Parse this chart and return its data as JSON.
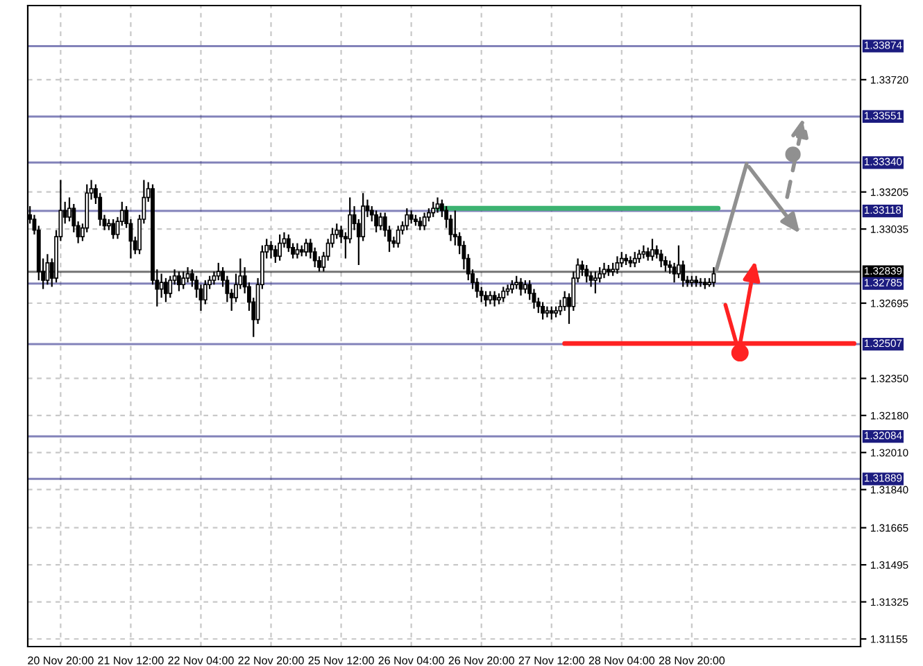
{
  "chart_data": {
    "type": "candlestick",
    "color": "#000000",
    "categories": [
      null,
      null,
      null,
      null,
      null,
      null,
      null,
      "20 Nov 20:00",
      null,
      null,
      null,
      null,
      null,
      null,
      null,
      null,
      null,
      null,
      null,
      null,
      null,
      null,
      null,
      "21 Nov 12:00",
      null,
      null,
      null,
      null,
      null,
      null,
      null,
      null,
      null,
      null,
      null,
      null,
      null,
      null,
      null,
      "22 Nov 04:00",
      null,
      null,
      null,
      null,
      null,
      null,
      null,
      null,
      null,
      null,
      null,
      null,
      null,
      null,
      null,
      "22 Nov 20:00",
      null,
      null,
      null,
      null,
      null,
      null,
      null,
      null,
      null,
      null,
      null,
      null,
      null,
      null,
      null,
      "25 Nov 12:00",
      null,
      null,
      null,
      null,
      null,
      null,
      null,
      null,
      null,
      null,
      null,
      null,
      null,
      null,
      null,
      "26 Nov 04:00",
      null,
      null,
      null,
      null,
      null,
      null,
      null,
      null,
      null,
      null,
      null,
      null,
      null,
      null,
      null,
      "26 Nov 20:00",
      null,
      null,
      null,
      null,
      null,
      null,
      null,
      null,
      null,
      null,
      null,
      null,
      null,
      null,
      null,
      "27 Nov 12:00",
      null,
      null,
      null,
      null,
      null,
      null,
      null,
      null,
      null,
      null,
      null,
      null,
      null,
      null,
      null,
      "28 Nov 04:00",
      null,
      null,
      null,
      null,
      null,
      null,
      null,
      null,
      null,
      null,
      null,
      null,
      null,
      null,
      null,
      "28 Nov 20:00",
      null,
      null,
      null,
      null,
      null,
      null,
      null,
      null,
      null,
      null,
      null,
      null,
      null,
      null,
      null,
      null,
      null,
      null,
      null,
      null,
      null,
      null,
      null,
      null,
      null,
      null,
      null,
      null,
      null,
      null,
      null,
      null,
      null,
      null,
      null,
      null,
      null,
      null
    ],
    "ohlc": [
      [
        1.331,
        1.3314,
        1.3306,
        1.3308
      ],
      [
        1.3308,
        1.331,
        1.3301,
        1.3303
      ],
      [
        1.3303,
        1.3305,
        1.328,
        1.3284
      ],
      [
        1.3284,
        1.329,
        1.3276,
        1.328
      ],
      [
        1.328,
        1.3292,
        1.3278,
        1.3288
      ],
      [
        1.3288,
        1.329,
        1.3277,
        1.3281
      ],
      [
        1.3281,
        1.3303,
        1.3279,
        1.33
      ],
      [
        1.33,
        1.3326,
        1.3298,
        1.3312
      ],
      [
        1.3312,
        1.3316,
        1.3306,
        1.3309
      ],
      [
        1.3309,
        1.3318,
        1.3307,
        1.3313
      ],
      [
        1.3313,
        1.3315,
        1.3302,
        1.3305
      ],
      [
        1.3305,
        1.3307,
        1.3297,
        1.33
      ],
      [
        1.33,
        1.3306,
        1.3298,
        1.3304
      ],
      [
        1.3304,
        1.3324,
        1.3302,
        1.332
      ],
      [
        1.332,
        1.3326,
        1.3317,
        1.3322
      ],
      [
        1.3322,
        1.3324,
        1.3315,
        1.3318
      ],
      [
        1.3318,
        1.332,
        1.3305,
        1.3308
      ],
      [
        1.3308,
        1.331,
        1.3303,
        1.3305
      ],
      [
        1.3305,
        1.3308,
        1.3303,
        1.3306
      ],
      [
        1.3306,
        1.3308,
        1.3299,
        1.3301
      ],
      [
        1.3301,
        1.3309,
        1.3299,
        1.3307
      ],
      [
        1.3307,
        1.3316,
        1.3305,
        1.3312
      ],
      [
        1.3312,
        1.3314,
        1.3304,
        1.3306
      ],
      [
        1.3306,
        1.3308,
        1.329,
        1.3298
      ],
      [
        1.3298,
        1.33,
        1.3292,
        1.3294
      ],
      [
        1.3294,
        1.331,
        1.3292,
        1.3308
      ],
      [
        1.3308,
        1.3326,
        1.3306,
        1.3318
      ],
      [
        1.3318,
        1.3325,
        1.3316,
        1.3322
      ],
      [
        1.3322,
        1.3324,
        1.3278,
        1.328
      ],
      [
        1.328,
        1.3285,
        1.3268,
        1.3276
      ],
      [
        1.3276,
        1.3283,
        1.3272,
        1.3279
      ],
      [
        1.3279,
        1.3281,
        1.327,
        1.3274
      ],
      [
        1.3274,
        1.3282,
        1.3272,
        1.328
      ],
      [
        1.328,
        1.3285,
        1.3278,
        1.3282
      ],
      [
        1.3282,
        1.3284,
        1.3275,
        1.3278
      ],
      [
        1.3278,
        1.3284,
        1.3276,
        1.3281
      ],
      [
        1.3281,
        1.3286,
        1.3279,
        1.3283
      ],
      [
        1.3283,
        1.3285,
        1.3277,
        1.328
      ],
      [
        1.328,
        1.3282,
        1.3272,
        1.3276
      ],
      [
        1.3276,
        1.3278,
        1.3266,
        1.3271
      ],
      [
        1.3271,
        1.328,
        1.3269,
        1.3278
      ],
      [
        1.3278,
        1.3282,
        1.3276,
        1.328
      ],
      [
        1.328,
        1.3284,
        1.3278,
        1.3282
      ],
      [
        1.3282,
        1.3288,
        1.328,
        1.3284
      ],
      [
        1.3284,
        1.3286,
        1.3277,
        1.328
      ],
      [
        1.328,
        1.3282,
        1.327,
        1.3274
      ],
      [
        1.3274,
        1.3276,
        1.3266,
        1.3272
      ],
      [
        1.3272,
        1.3283,
        1.327,
        1.3278
      ],
      [
        1.3278,
        1.329,
        1.3276,
        1.3282
      ],
      [
        1.3282,
        1.3286,
        1.3274,
        1.3277
      ],
      [
        1.3277,
        1.3279,
        1.3266,
        1.327
      ],
      [
        1.327,
        1.3272,
        1.3254,
        1.3262
      ],
      [
        1.3262,
        1.3281,
        1.326,
        1.3278
      ],
      [
        1.3278,
        1.3296,
        1.3276,
        1.3293
      ],
      [
        1.3293,
        1.3299,
        1.329,
        1.3296
      ],
      [
        1.3296,
        1.3298,
        1.329,
        1.3294
      ],
      [
        1.3294,
        1.3296,
        1.3288,
        1.3291
      ],
      [
        1.3291,
        1.3301,
        1.3289,
        1.3297
      ],
      [
        1.3297,
        1.3302,
        1.3295,
        1.3299
      ],
      [
        1.3299,
        1.3301,
        1.3293,
        1.3295
      ],
      [
        1.3295,
        1.3297,
        1.329,
        1.3292
      ],
      [
        1.3292,
        1.3297,
        1.329,
        1.3294
      ],
      [
        1.3294,
        1.3296,
        1.3291,
        1.3293
      ],
      [
        1.3293,
        1.3299,
        1.3291,
        1.3297
      ],
      [
        1.3297,
        1.3299,
        1.329,
        1.3293
      ],
      [
        1.3293,
        1.3295,
        1.3286,
        1.3289
      ],
      [
        1.3289,
        1.3291,
        1.3284,
        1.3286
      ],
      [
        1.3286,
        1.3293,
        1.3284,
        1.3291
      ],
      [
        1.3291,
        1.3299,
        1.3289,
        1.3297
      ],
      [
        1.3297,
        1.3304,
        1.3295,
        1.3301
      ],
      [
        1.3301,
        1.3306,
        1.3299,
        1.3303
      ],
      [
        1.3303,
        1.3305,
        1.3297,
        1.33
      ],
      [
        1.33,
        1.3302,
        1.329,
        1.3299
      ],
      [
        1.3299,
        1.3318,
        1.3297,
        1.331
      ],
      [
        1.331,
        1.3314,
        1.3303,
        1.3306
      ],
      [
        1.3306,
        1.3308,
        1.3287,
        1.33
      ],
      [
        1.33,
        1.332,
        1.3298,
        1.3314
      ],
      [
        1.3314,
        1.3317,
        1.3309,
        1.3312
      ],
      [
        1.3312,
        1.3314,
        1.3307,
        1.331
      ],
      [
        1.331,
        1.3312,
        1.3302,
        1.3305
      ],
      [
        1.3305,
        1.3311,
        1.3303,
        1.3309
      ],
      [
        1.3309,
        1.3311,
        1.33,
        1.3303
      ],
      [
        1.3303,
        1.3305,
        1.3293,
        1.3298
      ],
      [
        1.3298,
        1.33,
        1.3295,
        1.3297
      ],
      [
        1.3297,
        1.3305,
        1.3295,
        1.3303
      ],
      [
        1.3303,
        1.3307,
        1.3301,
        1.3305
      ],
      [
        1.3305,
        1.3313,
        1.3303,
        1.331
      ],
      [
        1.331,
        1.3312,
        1.3306,
        1.3308
      ],
      [
        1.3308,
        1.331,
        1.3305,
        1.3307
      ],
      [
        1.3307,
        1.3309,
        1.3303,
        1.3305
      ],
      [
        1.3305,
        1.3311,
        1.3303,
        1.3309
      ],
      [
        1.3309,
        1.3313,
        1.3307,
        1.3311
      ],
      [
        1.3311,
        1.3316,
        1.3309,
        1.3313
      ],
      [
        1.3313,
        1.3318,
        1.3311,
        1.3315
      ],
      [
        1.3315,
        1.3317,
        1.3309,
        1.3312
      ],
      [
        1.3312,
        1.3314,
        1.3304,
        1.3308
      ],
      [
        1.3308,
        1.331,
        1.3298,
        1.3301
      ],
      [
        1.3301,
        1.3312,
        1.3296,
        1.33
      ],
      [
        1.33,
        1.3302,
        1.3292,
        1.3296
      ],
      [
        1.3296,
        1.3298,
        1.3285,
        1.329
      ],
      [
        1.329,
        1.3292,
        1.328,
        1.3283
      ],
      [
        1.3283,
        1.3285,
        1.3276,
        1.3279
      ],
      [
        1.3279,
        1.3281,
        1.3272,
        1.3275
      ],
      [
        1.3275,
        1.3277,
        1.327,
        1.3273
      ],
      [
        1.3273,
        1.3275,
        1.3268,
        1.3271
      ],
      [
        1.3271,
        1.3275,
        1.3269,
        1.3273
      ],
      [
        1.3273,
        1.3275,
        1.3268,
        1.3271
      ],
      [
        1.3271,
        1.3274,
        1.3269,
        1.3272
      ],
      [
        1.3272,
        1.3277,
        1.327,
        1.3275
      ],
      [
        1.3275,
        1.3278,
        1.3273,
        1.3276
      ],
      [
        1.3276,
        1.328,
        1.3274,
        1.3278
      ],
      [
        1.3278,
        1.3282,
        1.3276,
        1.3279
      ],
      [
        1.3279,
        1.3281,
        1.3273,
        1.3276
      ],
      [
        1.3276,
        1.328,
        1.3274,
        1.3278
      ],
      [
        1.3278,
        1.328,
        1.3271,
        1.3274
      ],
      [
        1.3274,
        1.3276,
        1.3267,
        1.327
      ],
      [
        1.327,
        1.3272,
        1.3265,
        1.3268
      ],
      [
        1.3268,
        1.327,
        1.3262,
        1.3265
      ],
      [
        1.3265,
        1.3268,
        1.3263,
        1.3266
      ],
      [
        1.3266,
        1.3268,
        1.3262,
        1.3265
      ],
      [
        1.3265,
        1.3268,
        1.3263,
        1.3266
      ],
      [
        1.3266,
        1.3271,
        1.3264,
        1.3268
      ],
      [
        1.3268,
        1.3275,
        1.3266,
        1.3272
      ],
      [
        1.3272,
        1.3274,
        1.326,
        1.3268
      ],
      [
        1.3268,
        1.3284,
        1.3266,
        1.3281
      ],
      [
        1.3281,
        1.329,
        1.3279,
        1.3287
      ],
      [
        1.3287,
        1.3289,
        1.3282,
        1.3285
      ],
      [
        1.3285,
        1.3287,
        1.3279,
        1.3282
      ],
      [
        1.3282,
        1.3284,
        1.3277,
        1.328
      ],
      [
        1.328,
        1.3284,
        1.3274,
        1.3281
      ],
      [
        1.3281,
        1.3286,
        1.3279,
        1.3283
      ],
      [
        1.3283,
        1.3288,
        1.3281,
        1.3285
      ],
      [
        1.3285,
        1.3287,
        1.3282,
        1.3284
      ],
      [
        1.3284,
        1.3288,
        1.3282,
        1.3285
      ],
      [
        1.3285,
        1.3291,
        1.3283,
        1.3288
      ],
      [
        1.3288,
        1.3293,
        1.3286,
        1.329
      ],
      [
        1.329,
        1.3292,
        1.3287,
        1.3289
      ],
      [
        1.3289,
        1.3291,
        1.3286,
        1.3288
      ],
      [
        1.3288,
        1.3293,
        1.3286,
        1.329
      ],
      [
        1.329,
        1.3294,
        1.3288,
        1.3292
      ],
      [
        1.3292,
        1.3296,
        1.329,
        1.3293
      ],
      [
        1.3293,
        1.3295,
        1.3289,
        1.3291
      ],
      [
        1.3291,
        1.3299,
        1.3289,
        1.3294
      ],
      [
        1.3294,
        1.3296,
        1.329,
        1.3292
      ],
      [
        1.3292,
        1.3294,
        1.3286,
        1.3289
      ],
      [
        1.3289,
        1.3291,
        1.3284,
        1.3287
      ],
      [
        1.3287,
        1.3289,
        1.3283,
        1.3286
      ],
      [
        1.3286,
        1.3288,
        1.3279,
        1.3283
      ],
      [
        1.3283,
        1.3296,
        1.3281,
        1.3287
      ],
      [
        1.3287,
        1.3289,
        1.3277,
        1.328
      ],
      [
        1.328,
        1.3282,
        1.3277,
        1.3279
      ],
      [
        1.3279,
        1.3282,
        1.3277,
        1.328
      ],
      [
        1.328,
        1.3282,
        1.3277,
        1.3279
      ],
      [
        1.3279,
        1.3281,
        1.3277,
        1.3279
      ],
      [
        1.3279,
        1.3281,
        1.3276,
        1.3278
      ],
      [
        1.3278,
        1.3281,
        1.3277,
        1.3279
      ],
      [
        1.3279,
        1.3286,
        1.3277,
        1.3283
      ],
      null,
      null,
      null,
      null,
      null,
      null,
      null,
      null,
      null,
      null,
      null,
      null,
      null,
      null,
      null,
      null,
      null,
      null,
      null,
      null,
      null,
      null,
      null,
      null,
      null,
      null,
      null,
      null,
      null,
      null,
      null,
      null,
      null
    ],
    "series": [
      {
        "type": "line",
        "color": "#3cb371",
        "values": [
          null,
          null,
          null,
          null,
          null,
          null,
          null,
          null,
          null,
          null,
          null,
          null,
          null,
          null,
          null,
          null,
          null,
          null,
          null,
          null,
          null,
          null,
          null,
          null,
          null,
          null,
          null,
          null,
          null,
          null,
          null,
          null,
          null,
          null,
          null,
          null,
          null,
          null,
          null,
          null,
          null,
          null,
          null,
          null,
          null,
          null,
          null,
          null,
          null,
          null,
          null,
          null,
          null,
          null,
          null,
          null,
          null,
          null,
          null,
          null,
          null,
          null,
          null,
          null,
          null,
          null,
          null,
          null,
          null,
          null,
          null,
          null,
          null,
          null,
          null,
          null,
          null,
          null,
          null,
          null,
          null,
          null,
          null,
          null,
          null,
          null,
          null,
          null,
          null,
          null,
          null,
          null,
          null,
          1.3313,
          1.3313,
          1.3313,
          1.3313,
          1.3313,
          1.3313,
          1.3313,
          1.3313,
          1.3313,
          1.3313,
          1.3313,
          1.3313,
          1.3313,
          1.3313,
          1.3313,
          1.3313,
          1.3313,
          1.3313,
          1.3313,
          1.3313,
          1.3313,
          1.3313,
          1.3313,
          1.3313,
          1.3313,
          1.3313,
          1.3313,
          1.3313,
          1.3313,
          1.3313,
          1.3313,
          1.3313,
          1.3313,
          1.3313,
          1.3313,
          1.3313,
          1.3313,
          1.3313,
          1.3313,
          1.3313,
          1.3313,
          1.3313,
          1.3313,
          1.3313,
          1.3313,
          1.3313,
          1.3313,
          1.3313,
          1.3313,
          1.3313,
          1.3313,
          1.3313,
          1.3313,
          1.3313,
          1.3313,
          1.3313,
          1.3313,
          1.3313,
          1.3313,
          1.3313,
          1.3313,
          1.3313,
          1.3313,
          1.3313,
          1.3313,
          null,
          null,
          null,
          null,
          null,
          null,
          null,
          null,
          null,
          null,
          null,
          null,
          null,
          null,
          null,
          null,
          null,
          null,
          null,
          null,
          null,
          null,
          null,
          null,
          null,
          null,
          null,
          null,
          null,
          null,
          null,
          null
        ]
      },
      {
        "type": "line",
        "color": "#ff2222",
        "values": [
          null,
          null,
          null,
          null,
          null,
          null,
          null,
          null,
          null,
          null,
          null,
          null,
          null,
          null,
          null,
          null,
          null,
          null,
          null,
          null,
          null,
          null,
          null,
          null,
          null,
          null,
          null,
          null,
          null,
          null,
          null,
          null,
          null,
          null,
          null,
          null,
          null,
          null,
          null,
          null,
          null,
          null,
          null,
          null,
          null,
          null,
          null,
          null,
          null,
          null,
          null,
          null,
          null,
          null,
          null,
          null,
          null,
          null,
          null,
          null,
          null,
          null,
          null,
          null,
          null,
          null,
          null,
          null,
          null,
          null,
          null,
          null,
          null,
          null,
          null,
          null,
          null,
          null,
          null,
          null,
          null,
          null,
          null,
          null,
          null,
          null,
          null,
          null,
          null,
          null,
          null,
          null,
          null,
          null,
          null,
          null,
          null,
          null,
          null,
          null,
          null,
          null,
          null,
          null,
          null,
          null,
          null,
          null,
          null,
          null,
          null,
          null,
          null,
          null,
          null,
          null,
          null,
          null,
          null,
          null,
          null,
          null,
          1.3251,
          1.3251,
          1.3251,
          1.3251,
          1.3251,
          1.3251,
          1.3251,
          1.3251,
          1.3251,
          1.3251,
          1.3251,
          1.3251,
          1.3251,
          1.3251,
          1.3251,
          1.3251,
          1.3251,
          1.3251,
          1.3251,
          1.3251,
          1.3251,
          1.3251,
          1.3251,
          1.3251,
          1.3251,
          1.3251,
          1.3251,
          1.3251,
          1.3251,
          1.3251,
          1.3251,
          1.3251,
          1.3251,
          1.3251,
          1.3251,
          1.3251,
          1.3251,
          1.3251,
          1.3251,
          1.3251,
          1.3251,
          1.3251,
          1.3251,
          1.3251,
          1.3251,
          1.3251,
          1.3251,
          1.3251,
          1.3251,
          1.3251,
          1.3251,
          1.3251,
          1.3251,
          1.3251,
          1.3251,
          1.3251,
          1.3251,
          1.3251,
          1.3251,
          1.3251,
          1.3251,
          1.3251,
          1.3251,
          1.3251,
          1.3251,
          1.3251,
          1.3251,
          null
        ]
      }
    ],
    "ylim": [
      1.3112,
      1.3406
    ],
    "yticks": [
      {
        "value": 1.3372,
        "label": "1.33720"
      },
      {
        "value": 1.33205,
        "label": "1.33205"
      },
      {
        "value": 1.33035,
        "label": "1.33035"
      },
      {
        "value": 1.32695,
        "label": "1.32695"
      },
      {
        "value": 1.3235,
        "label": "1.32350"
      },
      {
        "value": 1.3218,
        "label": "1.32180"
      },
      {
        "value": 1.3201,
        "label": "1.32010"
      },
      {
        "value": 1.3184,
        "label": "1.31840"
      },
      {
        "value": 1.31665,
        "label": "1.31665"
      },
      {
        "value": 1.31495,
        "label": "1.31495"
      },
      {
        "value": 1.31325,
        "label": "1.31325"
      },
      {
        "value": 1.31155,
        "label": "1.31155"
      }
    ],
    "grid": true,
    "ref_lines": [
      {
        "axis": "y",
        "value": 1.33874,
        "label": "1.33874",
        "color": "#1c1c80"
      },
      {
        "axis": "y",
        "value": 1.33551,
        "label": "1.33551",
        "color": "#1c1c80"
      },
      {
        "axis": "y",
        "value": 1.3334,
        "label": "1.33340",
        "color": "#1c1c80"
      },
      {
        "axis": "y",
        "value": 1.33118,
        "label": "1.33118",
        "color": "#1c1c80"
      },
      {
        "axis": "y",
        "value": 1.32839,
        "label": "1.32839",
        "color": "#000000"
      },
      {
        "axis": "y",
        "value": 1.32785,
        "label": "1.32785",
        "color": "#1c1c80"
      },
      {
        "axis": "y",
        "value": 1.32507,
        "label": "1.32507",
        "color": "#1c1c80"
      },
      {
        "axis": "y",
        "value": 1.32084,
        "label": "1.32084",
        "color": "#1c1c80"
      },
      {
        "axis": "y",
        "value": 1.31889,
        "label": "1.31889",
        "color": "#1c1c80"
      }
    ]
  }
}
